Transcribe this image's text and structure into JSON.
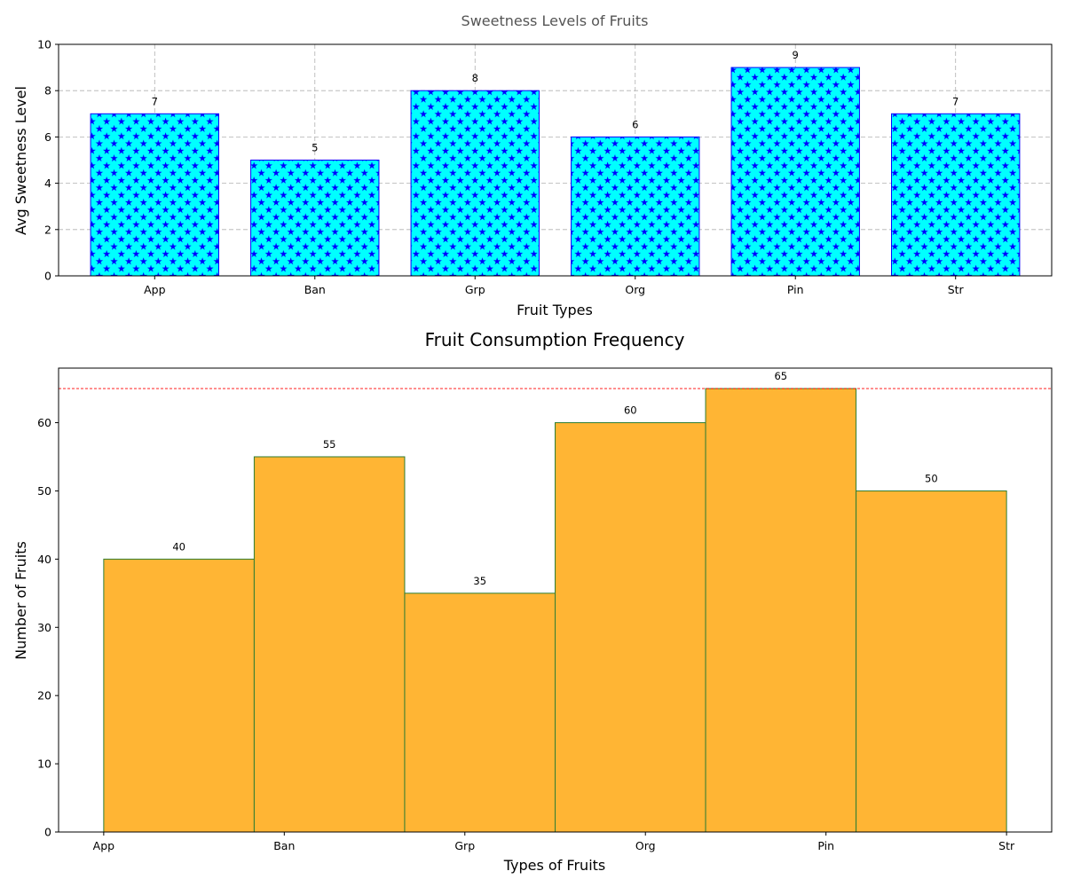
{
  "chart_data": [
    {
      "type": "bar",
      "title": "Sweetness Levels of Fruits",
      "xlabel": "Fruit Types",
      "ylabel": "Avg Sweetness Level",
      "categories": [
        "App",
        "Ban",
        "Grp",
        "Org",
        "Pin",
        "Str"
      ],
      "values": [
        7,
        5,
        8,
        6,
        9,
        7
      ],
      "ylim": [
        0,
        10
      ],
      "yticks": [
        0,
        2,
        4,
        6,
        8,
        10
      ],
      "grid": true,
      "bar_fill": "#00ffff",
      "bar_edge": "#0000ff",
      "hatch": "star",
      "hatch_color": "#0000ff"
    },
    {
      "type": "bar",
      "title": "Fruit Consumption Frequency",
      "xlabel": "Types of Fruits",
      "ylabel": "Number of Fruits",
      "categories": [
        "App",
        "Ban",
        "Grp",
        "Org",
        "Pin",
        "Str"
      ],
      "values": [
        40,
        55,
        35,
        60,
        65,
        50
      ],
      "ylim": [
        0,
        68
      ],
      "yticks": [
        0,
        10,
        20,
        30,
        40,
        50,
        60
      ],
      "grid": false,
      "bar_fill": "#ffb534",
      "bar_edge": "#2e7d32",
      "reference_line": 65,
      "reference_line_color": "#ff0000"
    }
  ]
}
